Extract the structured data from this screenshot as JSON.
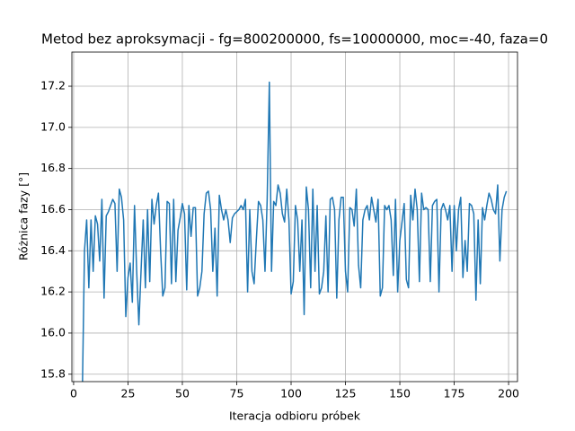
{
  "chart_data": {
    "type": "line",
    "title": "Metod bez aproksymacji - fg=800200000, fs=10000000, moc=-40, faza=0",
    "x_label": "Iteracja odbioru próbek",
    "y_label": "Różnica fazy [°]",
    "grid": true,
    "xlim": [
      -0.8,
      204.1
    ],
    "ylim": [
      15.764,
      17.366
    ],
    "xticks": [
      0,
      25,
      50,
      75,
      100,
      125,
      150,
      175,
      200
    ],
    "yticks": [
      15.8,
      {
        "value": 16.0,
        "label": "16.0"
      },
      16.2,
      16.4,
      16.6,
      16.8,
      {
        "value": 17.0,
        "label": "17.0"
      },
      17.2
    ],
    "series": [
      {
        "color": "#1f77b4",
        "x": [
          4,
          5,
          6,
          7,
          8,
          9,
          10,
          11,
          12,
          13,
          14,
          15,
          16,
          17,
          18,
          19,
          20,
          21,
          22,
          23,
          24,
          25,
          26,
          27,
          28,
          29,
          30,
          31,
          32,
          33,
          34,
          35,
          36,
          37,
          38,
          39,
          40,
          41,
          42,
          43,
          44,
          45,
          46,
          47,
          48,
          49,
          50,
          51,
          52,
          53,
          54,
          55,
          56,
          57,
          58,
          59,
          60,
          61,
          62,
          63,
          64,
          65,
          66,
          67,
          68,
          69,
          70,
          71,
          72,
          73,
          74,
          75,
          76,
          77,
          78,
          79,
          80,
          81,
          82,
          83,
          84,
          85,
          86,
          87,
          88,
          89,
          90,
          91,
          92,
          93,
          94,
          95,
          96,
          97,
          98,
          99,
          100,
          101,
          102,
          103,
          104,
          105,
          106,
          107,
          108,
          109,
          110,
          111,
          112,
          113,
          114,
          115,
          116,
          117,
          118,
          119,
          120,
          121,
          122,
          123,
          124,
          125,
          126,
          127,
          128,
          129,
          130,
          131,
          132,
          133,
          134,
          135,
          136,
          137,
          138,
          139,
          140,
          141,
          142,
          143,
          144,
          145,
          146,
          147,
          148,
          149,
          150,
          151,
          152,
          153,
          154,
          155,
          156,
          157,
          158,
          159,
          160,
          161,
          162,
          163,
          164,
          165,
          166,
          167,
          168,
          169,
          170,
          171,
          172,
          173,
          174,
          175,
          176,
          177,
          178,
          179,
          180,
          181,
          182,
          183,
          184,
          185,
          186,
          187,
          188,
          189,
          190,
          191,
          192,
          193,
          194,
          195,
          196,
          197,
          198,
          199
        ],
        "values": [
          15.7,
          16.4,
          16.55,
          16.22,
          16.55,
          16.3,
          16.57,
          16.53,
          16.35,
          16.65,
          16.17,
          16.57,
          16.59,
          16.62,
          16.65,
          16.63,
          16.3,
          16.7,
          16.66,
          16.55,
          16.08,
          16.27,
          16.34,
          16.15,
          16.62,
          16.3,
          16.04,
          16.3,
          16.55,
          16.22,
          16.6,
          16.25,
          16.65,
          16.53,
          16.62,
          16.68,
          16.4,
          16.18,
          16.22,
          16.64,
          16.63,
          16.24,
          16.65,
          16.25,
          16.5,
          16.56,
          16.63,
          16.58,
          16.21,
          16.62,
          16.47,
          16.61,
          16.61,
          16.18,
          16.22,
          16.3,
          16.58,
          16.68,
          16.69,
          16.6,
          16.3,
          16.51,
          16.18,
          16.67,
          16.6,
          16.55,
          16.6,
          16.55,
          16.44,
          16.56,
          16.58,
          16.59,
          16.6,
          16.62,
          16.6,
          16.65,
          16.2,
          16.6,
          16.3,
          16.24,
          16.45,
          16.64,
          16.62,
          16.55,
          16.3,
          16.65,
          17.22,
          16.3,
          16.64,
          16.62,
          16.72,
          16.68,
          16.58,
          16.54,
          16.7,
          16.55,
          16.19,
          16.25,
          16.62,
          16.55,
          16.3,
          16.55,
          16.09,
          16.71,
          16.6,
          16.22,
          16.7,
          16.3,
          16.62,
          16.19,
          16.22,
          16.3,
          16.57,
          16.2,
          16.65,
          16.66,
          16.6,
          16.17,
          16.55,
          16.66,
          16.66,
          16.3,
          16.2,
          16.61,
          16.6,
          16.52,
          16.7,
          16.33,
          16.22,
          16.55,
          16.6,
          16.62,
          16.55,
          16.66,
          16.6,
          16.54,
          16.65,
          16.18,
          16.22,
          16.62,
          16.6,
          16.62,
          16.55,
          16.28,
          16.65,
          16.2,
          16.45,
          16.54,
          16.63,
          16.26,
          16.22,
          16.67,
          16.55,
          16.7,
          16.6,
          16.25,
          16.68,
          16.6,
          16.61,
          16.6,
          16.25,
          16.62,
          16.64,
          16.65,
          16.2,
          16.6,
          16.63,
          16.6,
          16.55,
          16.62,
          16.3,
          16.62,
          16.4,
          16.6,
          16.66,
          16.27,
          16.45,
          16.3,
          16.63,
          16.62,
          16.58,
          16.16,
          16.55,
          16.24,
          16.61,
          16.55,
          16.62,
          16.68,
          16.65,
          16.6,
          16.58,
          16.72,
          16.35,
          16.6,
          16.66,
          16.69
        ]
      }
    ]
  }
}
